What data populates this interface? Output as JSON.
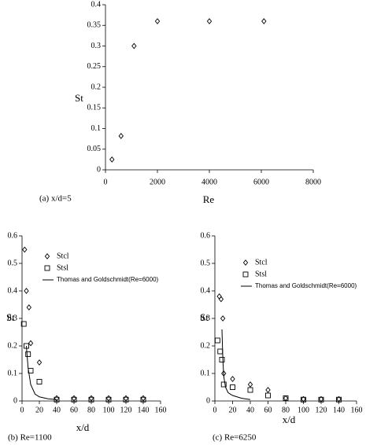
{
  "chart_data": [
    {
      "type": "scatter",
      "caption": "(a) x/d=5",
      "x_label": "Re",
      "y_label": "St",
      "xlim": [
        0,
        8000
      ],
      "ylim": [
        0,
        0.4
      ],
      "xticks": [
        0,
        2000,
        4000,
        6000,
        8000
      ],
      "yticks": [
        0,
        0.05,
        0.1,
        0.15,
        0.2,
        0.25,
        0.3,
        0.35,
        0.4
      ],
      "series": [
        {
          "marker": "diamond",
          "color": "#000000",
          "x": [
            250,
            600,
            1100,
            2000,
            4000,
            6100
          ],
          "values": [
            0.025,
            0.082,
            0.3,
            0.36,
            0.36,
            0.36
          ]
        }
      ]
    },
    {
      "type": "scatter",
      "caption": "(b) Re=1100",
      "x_label": "x/d",
      "y_label": "St",
      "xlim": [
        0,
        160
      ],
      "ylim": [
        0,
        0.6
      ],
      "xticks": [
        0,
        20,
        40,
        60,
        80,
        100,
        120,
        140,
        160
      ],
      "yticks": [
        0,
        0.1,
        0.2,
        0.3,
        0.4,
        0.5,
        0.6
      ],
      "legend": "upper left",
      "series": [
        {
          "name": "Stcl",
          "marker": "diamond",
          "color": "#000000",
          "x": [
            3,
            5,
            8,
            10,
            20,
            40,
            60,
            80,
            100,
            120,
            140
          ],
          "values": [
            0.55,
            0.4,
            0.34,
            0.21,
            0.14,
            0.01,
            0.01,
            0.01,
            0.01,
            0.01,
            0.01
          ]
        },
        {
          "name": "Stsl",
          "marker": "square",
          "color": "#000000",
          "x": [
            2,
            5,
            7,
            10,
            20,
            40,
            60,
            80,
            100,
            120,
            140
          ],
          "values": [
            0.28,
            0.2,
            0.17,
            0.11,
            0.07,
            0.005,
            0.005,
            0.005,
            0.005,
            0.005,
            0.005
          ]
        },
        {
          "name": "Thomas and Goldschmidt(Re=6000)",
          "marker": "line",
          "color": "#000000",
          "x": [
            5,
            7,
            10,
            15,
            20,
            30,
            40
          ],
          "values": [
            0.2,
            0.12,
            0.06,
            0.025,
            0.015,
            0.008,
            0.005
          ]
        }
      ]
    },
    {
      "type": "scatter",
      "caption": "(c) Re=6250",
      "x_label": "x/d",
      "y_label": "St",
      "xlim": [
        0,
        160
      ],
      "ylim": [
        0,
        0.6
      ],
      "xticks": [
        0,
        20,
        40,
        60,
        80,
        100,
        120,
        140,
        160
      ],
      "yticks": [
        0,
        0.1,
        0.2,
        0.3,
        0.4,
        0.5,
        0.6
      ],
      "legend": "upper left",
      "series": [
        {
          "name": "Stcl",
          "marker": "diamond",
          "color": "#000000",
          "x": [
            5,
            7,
            9,
            10,
            20,
            40,
            60,
            80,
            100,
            120,
            140
          ],
          "values": [
            0.38,
            0.37,
            0.3,
            0.1,
            0.08,
            0.06,
            0.04,
            0.01,
            0.007,
            0.007,
            0.007
          ]
        },
        {
          "name": "Stsl",
          "marker": "square",
          "color": "#000000",
          "x": [
            3,
            6,
            8,
            10,
            20,
            40,
            60,
            80,
            100,
            120,
            140
          ],
          "values": [
            0.22,
            0.18,
            0.15,
            0.06,
            0.05,
            0.04,
            0.02,
            0.01,
            0.005,
            0.005,
            0.005
          ]
        },
        {
          "name": "Thomas and Goldschmidt(Re=6000)",
          "marker": "line",
          "color": "#000000",
          "x": [
            8,
            9,
            10,
            12,
            15,
            20,
            30,
            40
          ],
          "values": [
            0.26,
            0.15,
            0.09,
            0.05,
            0.03,
            0.02,
            0.01,
            0.005
          ]
        }
      ]
    }
  ]
}
